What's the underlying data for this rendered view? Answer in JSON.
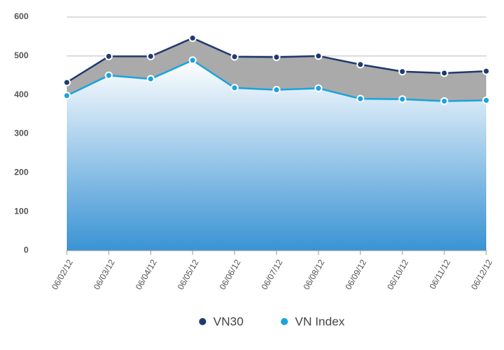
{
  "chart_data": {
    "type": "area",
    "categories": [
      "06/02/12",
      "06/03/12",
      "06/04/12",
      "06/05/12",
      "06/06/12",
      "06/07/12",
      "06/08/12",
      "06/09/12",
      "06/10/12",
      "06/11/12",
      "06/12/12"
    ],
    "series": [
      {
        "name": "VN30",
        "color": "#1f3a6e",
        "area_color": "#aaaaaa",
        "values": [
          432,
          499,
          499,
          546,
          498,
          497,
          500,
          478,
          460,
          456,
          461
        ]
      },
      {
        "name": "VN Index",
        "color": "#1aa3de",
        "area_color": "#3a93d4",
        "values": [
          398,
          450,
          441,
          489,
          418,
          413,
          417,
          390,
          389,
          384,
          386
        ]
      }
    ],
    "ylim": [
      0,
      600
    ],
    "yticks": [
      0,
      100,
      200,
      300,
      400,
      500,
      600
    ],
    "grid": true,
    "legend": "bottom"
  }
}
